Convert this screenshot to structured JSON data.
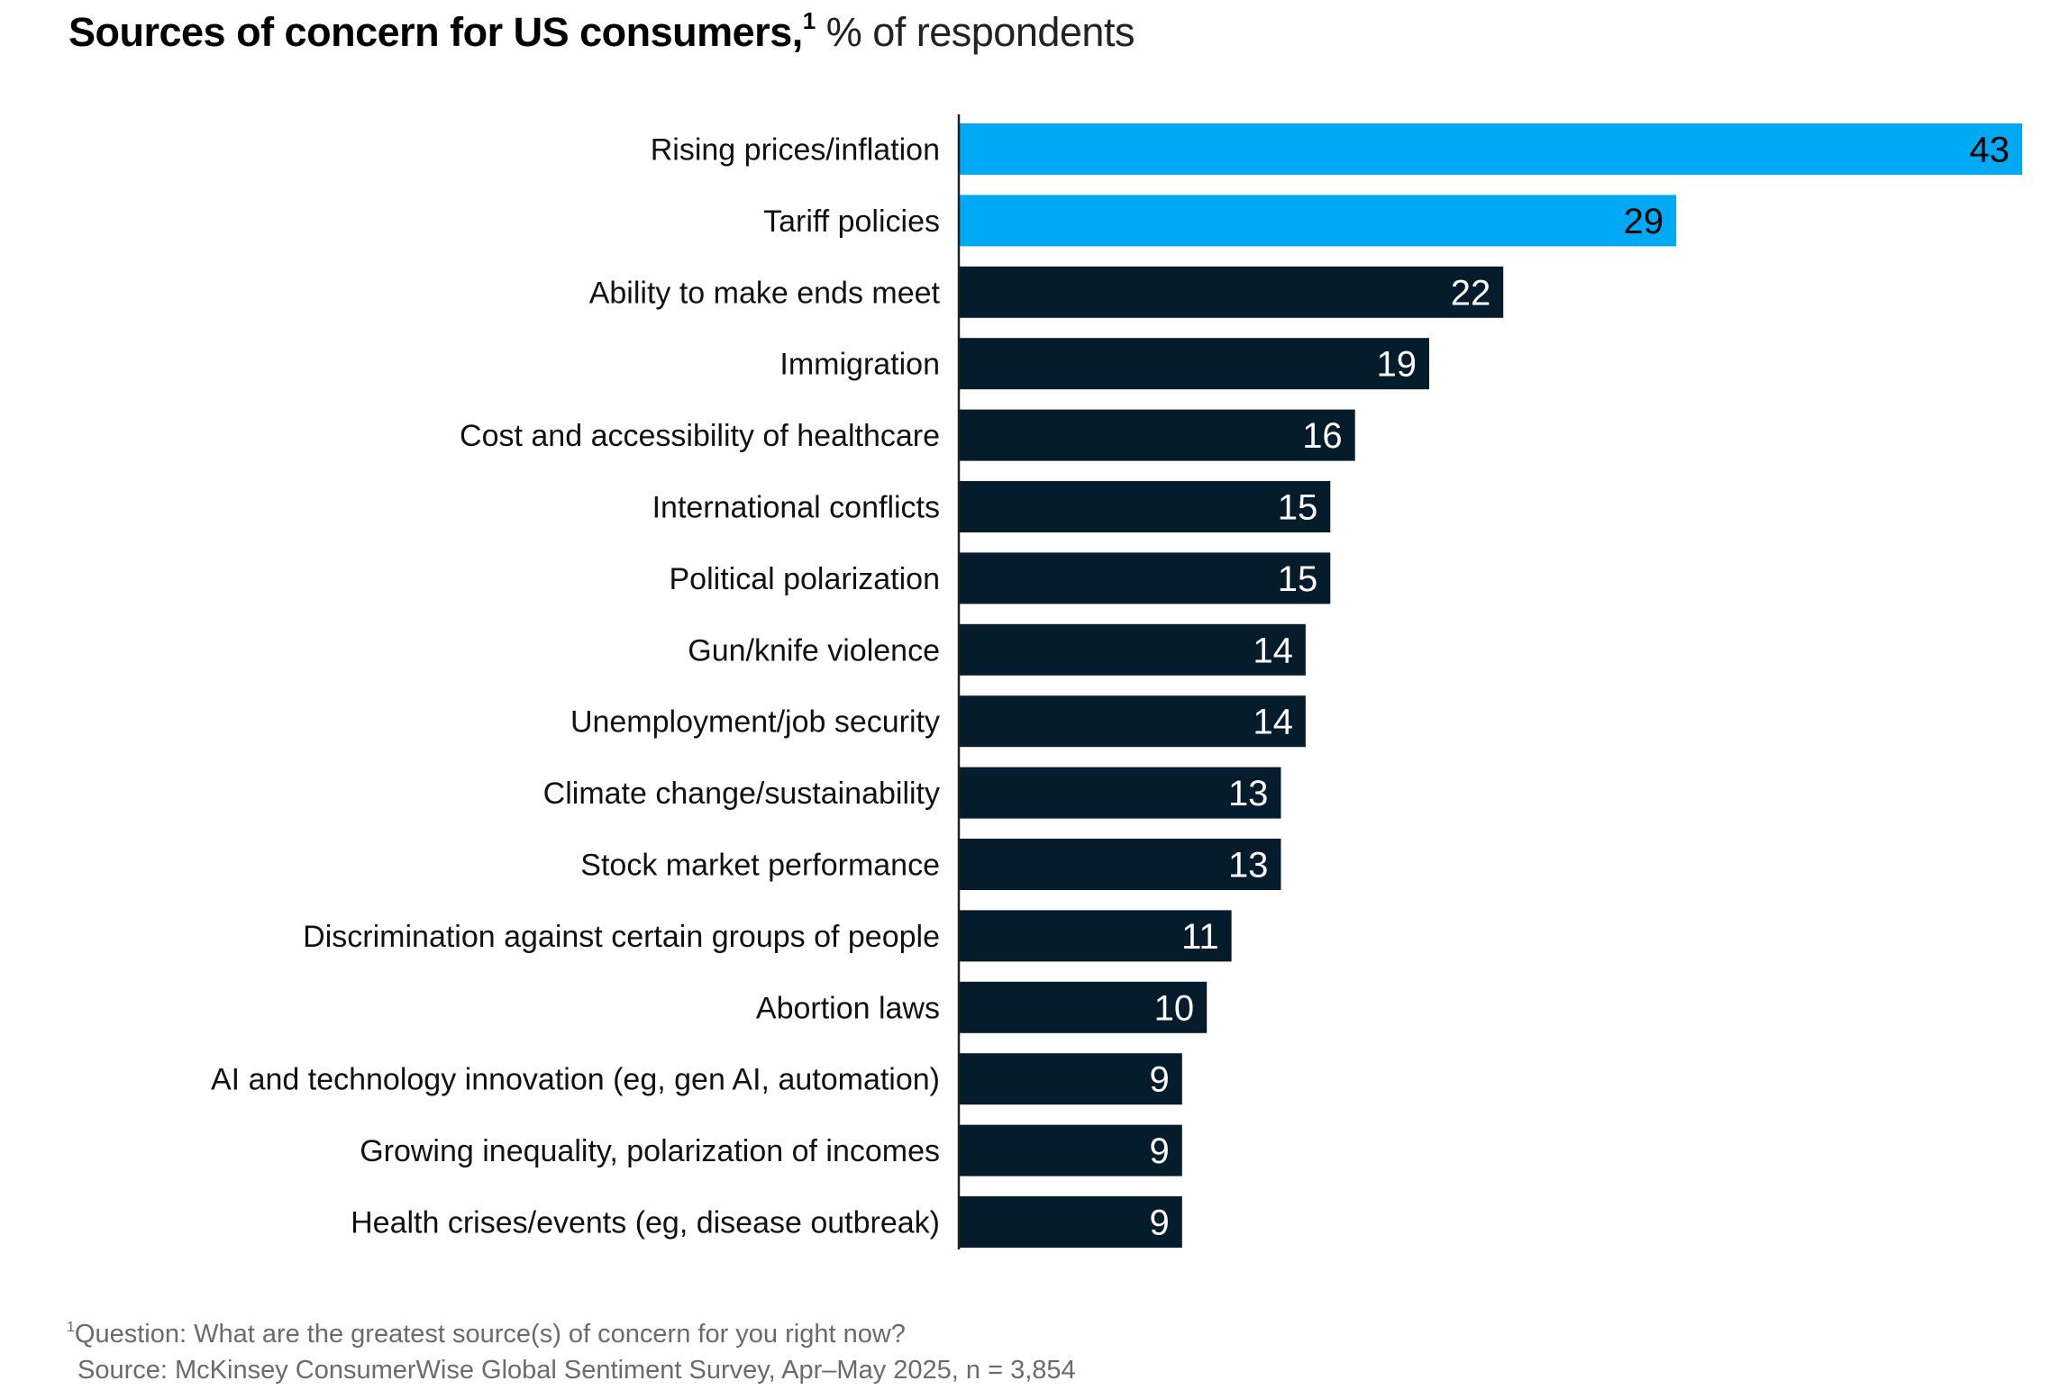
{
  "chart_data": {
    "type": "bar",
    "orientation": "horizontal",
    "title": "Sources of concern for US consumers,",
    "title_footnote_marker": "1",
    "subtitle": "% of respondents",
    "categories": [
      "Rising prices/inflation",
      "Tariff policies",
      "Ability to make ends meet",
      "Immigration",
      "Cost and accessibility of healthcare",
      "International conflicts",
      "Political polarization",
      "Gun/knife violence",
      "Unemployment/job security",
      "Climate change/sustainability",
      "Stock market performance",
      "Discrimination against certain groups of people",
      "Abortion laws",
      "AI and technology innovation (eg, gen AI, automation)",
      "Growing inequality, polarization of incomes",
      "Health crises/events (eg, disease outbreak)"
    ],
    "values": [
      43,
      29,
      22,
      19,
      16,
      15,
      15,
      14,
      14,
      13,
      13,
      11,
      10,
      9,
      9,
      9
    ],
    "highlighted": [
      true,
      true,
      false,
      false,
      false,
      false,
      false,
      false,
      false,
      false,
      false,
      false,
      false,
      false,
      false,
      false
    ],
    "colors": {
      "highlight": "#00A9F4",
      "default": "#051C2C",
      "label_on_highlight": "#000000",
      "label_on_default": "#FFFFFF"
    },
    "xlim": [
      0,
      43
    ],
    "grid": false,
    "legend": "none",
    "data_labels": true
  },
  "footnotes": {
    "marker": "1",
    "question": "Question: What are the greatest source(s) of concern for you right now?",
    "source": "Source: McKinsey ConsumerWise Global Sentiment Survey, Apr–May 2025, n = 3,854"
  }
}
